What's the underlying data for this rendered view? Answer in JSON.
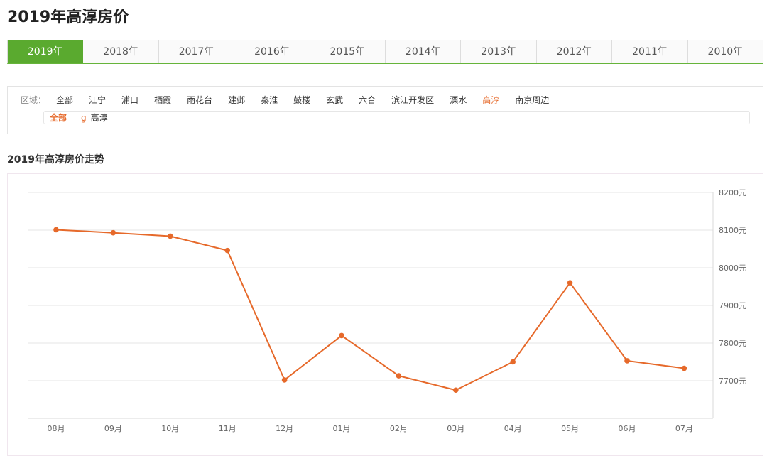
{
  "page": {
    "title": "2019年高淳房价"
  },
  "year_tabs": [
    {
      "label": "2019年",
      "active": true
    },
    {
      "label": "2018年",
      "active": false
    },
    {
      "label": "2017年",
      "active": false
    },
    {
      "label": "2016年",
      "active": false
    },
    {
      "label": "2015年",
      "active": false
    },
    {
      "label": "2014年",
      "active": false
    },
    {
      "label": "2013年",
      "active": false
    },
    {
      "label": "2012年",
      "active": false
    },
    {
      "label": "2011年",
      "active": false
    },
    {
      "label": "2010年",
      "active": false
    }
  ],
  "filters": {
    "region_label": "区域：",
    "regions": [
      {
        "label": "全部",
        "active": false
      },
      {
        "label": "江宁",
        "active": false
      },
      {
        "label": "浦口",
        "active": false
      },
      {
        "label": "栖霞",
        "active": false
      },
      {
        "label": "雨花台",
        "active": false
      },
      {
        "label": "建邺",
        "active": false
      },
      {
        "label": "秦淮",
        "active": false
      },
      {
        "label": "鼓楼",
        "active": false
      },
      {
        "label": "玄武",
        "active": false
      },
      {
        "label": "六合",
        "active": false
      },
      {
        "label": "滨江开发区",
        "active": false
      },
      {
        "label": "溧水",
        "active": false
      },
      {
        "label": "高淳",
        "active": true
      },
      {
        "label": "南京周边",
        "active": false
      }
    ],
    "sub": {
      "all_label": "全部",
      "marker": "g",
      "item": "高淳"
    }
  },
  "colors": {
    "accent_green": "#5aaa2f",
    "line_orange": "#e6692a",
    "active_text": "#e6692a"
  },
  "chart_data": {
    "type": "line",
    "title": "2019年高淳房价走势",
    "categories": [
      "08月",
      "09月",
      "10月",
      "11月",
      "12月",
      "01月",
      "02月",
      "03月",
      "04月",
      "05月",
      "06月",
      "07月"
    ],
    "values": [
      8101,
      8093,
      8084,
      8046,
      7702,
      7820,
      7713,
      7675,
      7750,
      7960,
      7753,
      7733
    ],
    "ylim": [
      7600,
      8200
    ],
    "yticks": [
      "8200元",
      "8100元",
      "8000元",
      "7900元",
      "7800元",
      "7700元"
    ],
    "ytick_values": [
      8200,
      8100,
      8000,
      7900,
      7800,
      7700
    ],
    "y_axis_side": "right",
    "grid": true,
    "legend": "none"
  }
}
